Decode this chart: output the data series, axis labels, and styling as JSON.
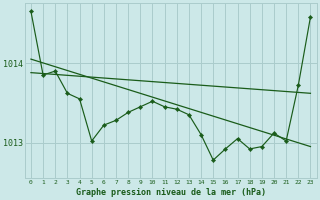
{
  "background_color": "#cce8e8",
  "grid_color": "#aacccc",
  "line_color": "#1a5c1a",
  "title": "Graphe pression niveau de la mer (hPa)",
  "xlim": [
    -0.5,
    23.5
  ],
  "ylim": [
    1012.55,
    1014.75
  ],
  "yticks": [
    1013,
    1014
  ],
  "xticks": [
    0,
    1,
    2,
    3,
    4,
    5,
    6,
    7,
    8,
    9,
    10,
    11,
    12,
    13,
    14,
    15,
    16,
    17,
    18,
    19,
    20,
    21,
    22,
    23
  ],
  "main_series": [
    1014.65,
    1013.85,
    1013.9,
    1013.62,
    1013.55,
    1013.02,
    1013.22,
    1013.28,
    1013.38,
    1013.45,
    1013.52,
    1013.45,
    1013.42,
    1013.35,
    1013.1,
    1012.78,
    1012.92,
    1013.05,
    1012.92,
    1012.95,
    1013.12,
    1013.02,
    1013.72,
    1014.58
  ],
  "line1_x": [
    0,
    23
  ],
  "line1_y": [
    1014.05,
    1012.95
  ],
  "line2_x": [
    0,
    23
  ],
  "line2_y": [
    1013.88,
    1013.62
  ]
}
